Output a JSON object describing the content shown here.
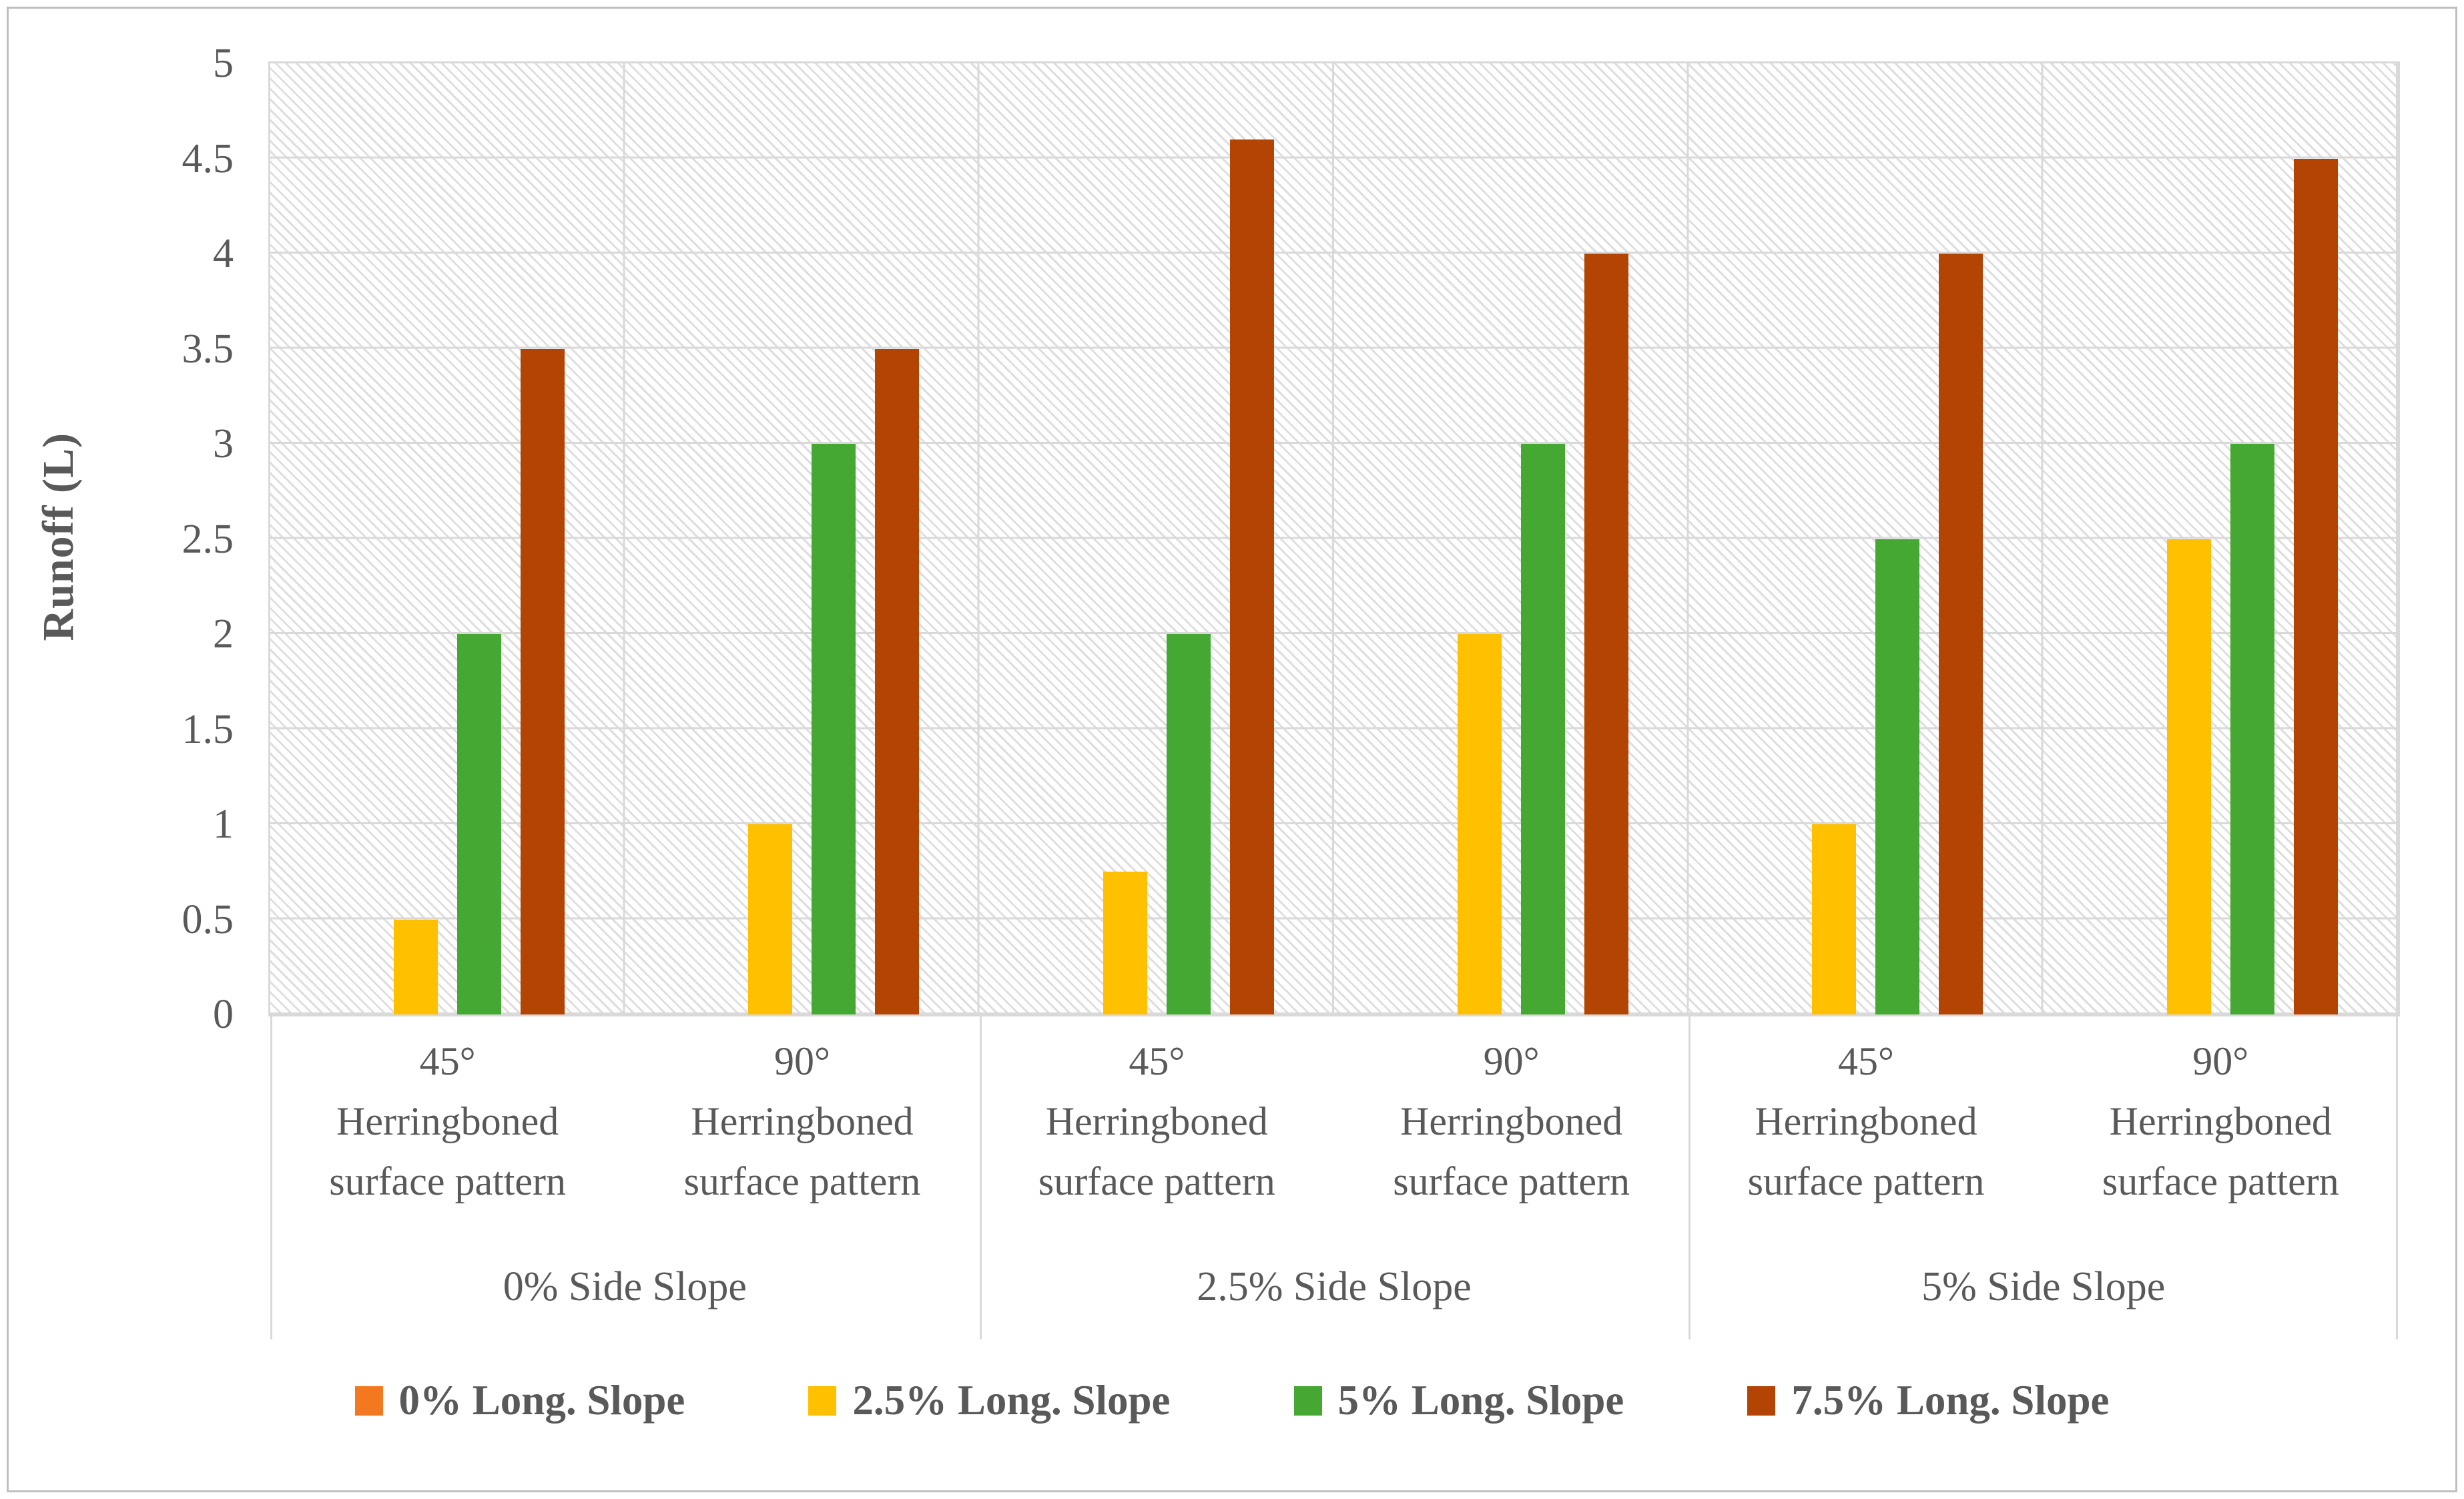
{
  "y_axis": {
    "title": "Runoff (L)",
    "ticks": [
      "5",
      "4.5",
      "4",
      "3.5",
      "3",
      "2.5",
      "2",
      "1.5",
      "1",
      "0.5",
      "0"
    ]
  },
  "chart_data": {
    "type": "bar",
    "title": "",
    "xlabel": "",
    "ylabel": "Runoff (L)",
    "ylim": [
      0,
      5
    ],
    "ytick_step": 0.5,
    "grid": true,
    "legend_position": "bottom",
    "plot_background": "diagonal-hatch",
    "categories": [
      {
        "angle": "45°",
        "pattern": "Herringboned surface pattern",
        "group": "0% Side Slope"
      },
      {
        "angle": "90°",
        "pattern": "Herringboned surface pattern",
        "group": "0% Side Slope"
      },
      {
        "angle": "45°",
        "pattern": "Herringboned surface pattern",
        "group": "2.5% Side Slope"
      },
      {
        "angle": "90°",
        "pattern": "Herringboned surface pattern",
        "group": "2.5% Side Slope"
      },
      {
        "angle": "45°",
        "pattern": "Herringboned surface pattern",
        "group": "5% Side Slope"
      },
      {
        "angle": "90°",
        "pattern": "Herringboned surface pattern",
        "group": "5% Side Slope"
      }
    ],
    "group_labels": [
      "0% Side Slope",
      "2.5% Side Slope",
      "5% Side Slope"
    ],
    "series": [
      {
        "name": "0% Long. Slope",
        "color": "#F4781F",
        "values": [
          0,
          0,
          0,
          0,
          0,
          0
        ]
      },
      {
        "name": "2.5% Long. Slope",
        "color": "#FFC000",
        "values": [
          0.5,
          1,
          0.75,
          2,
          1,
          2.5
        ]
      },
      {
        "name": "5% Long. Slope",
        "color": "#45A832",
        "values": [
          2,
          3,
          2,
          3,
          2.5,
          3
        ]
      },
      {
        "name": "7.5% Long. Slope",
        "color": "#B34403",
        "values": [
          3.5,
          3.5,
          4.6,
          4,
          4,
          4.5
        ]
      }
    ]
  },
  "colors": {
    "text": "#595959",
    "gridline": "#D9D9D9",
    "hatch": "#DEDEDE",
    "frame_border": "#BFBFBF"
  }
}
